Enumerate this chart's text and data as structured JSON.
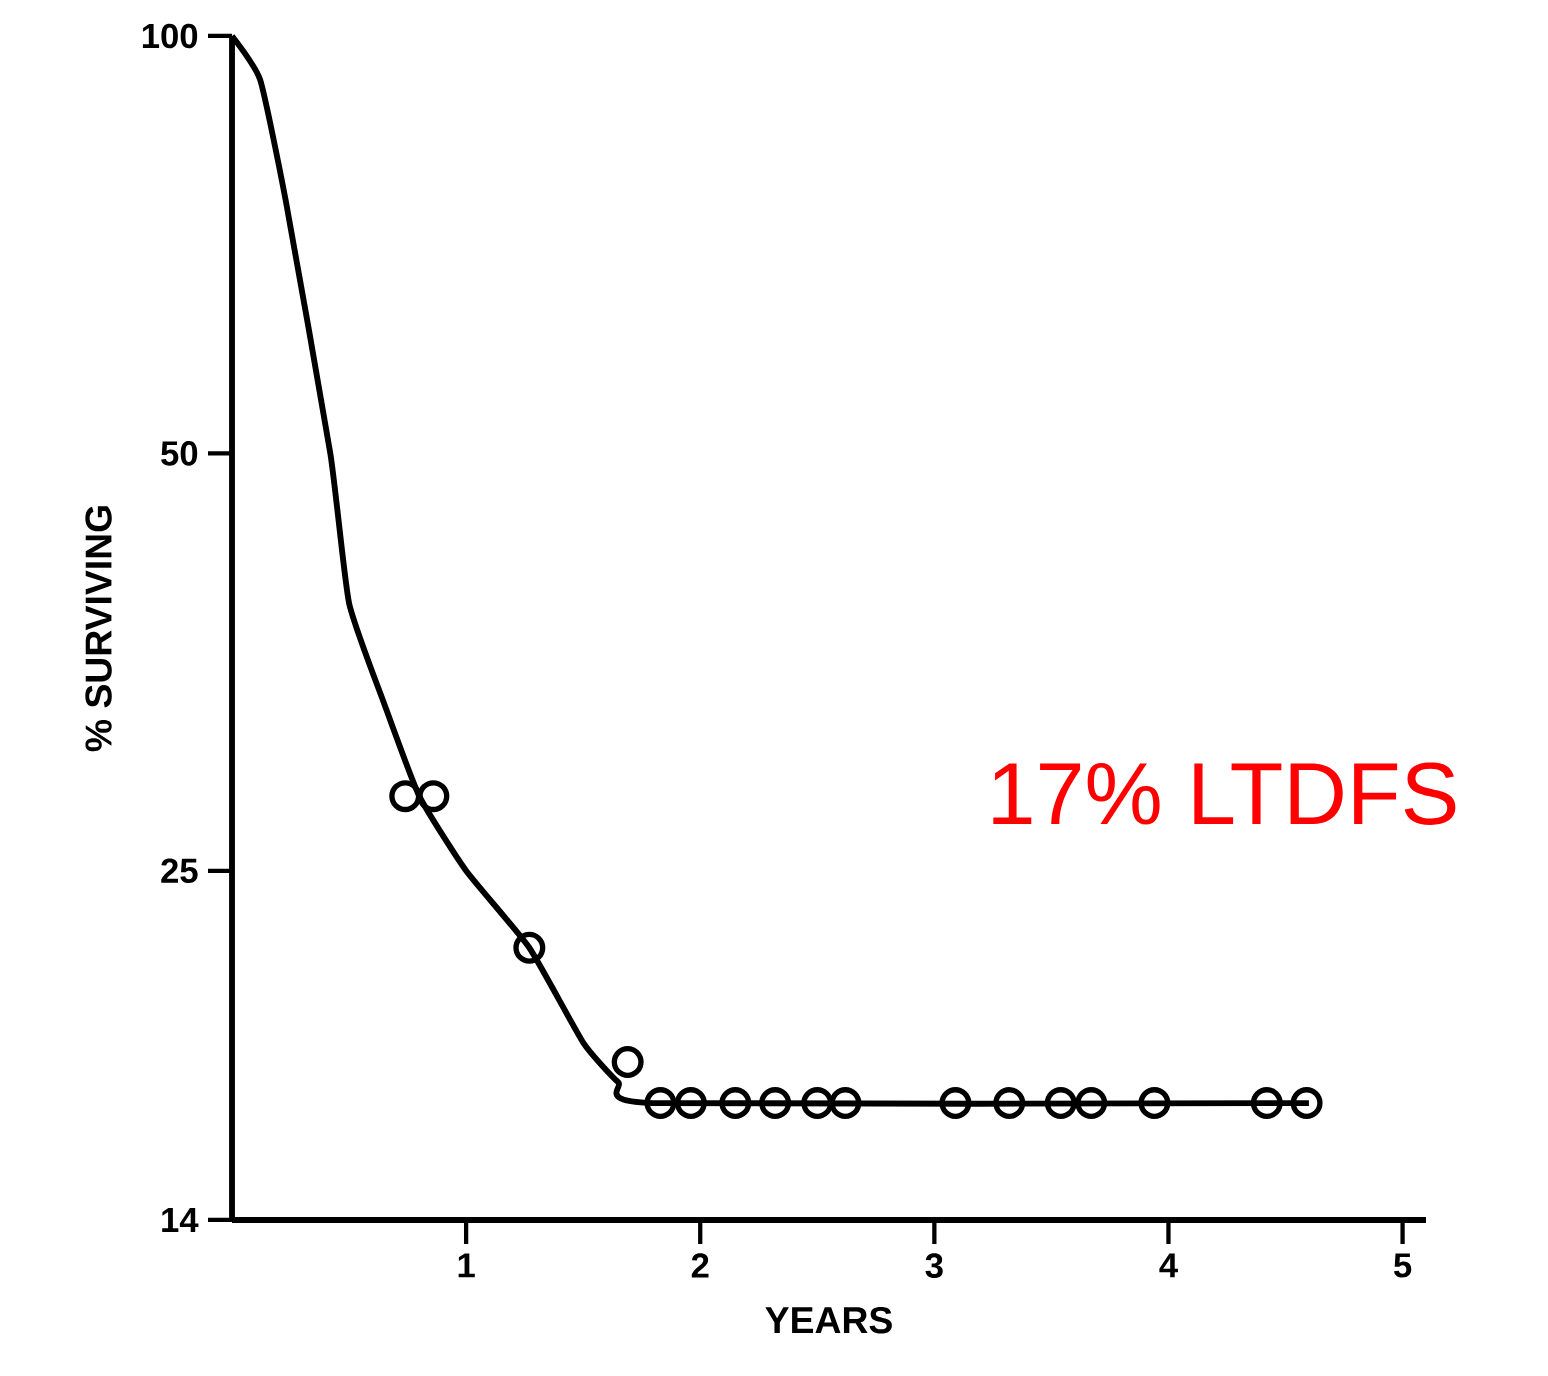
{
  "chart_data": {
    "type": "line",
    "xlabel": "YEARS",
    "ylabel": "% SURVIVING",
    "log": "y",
    "xlim": [
      0,
      5.1
    ],
    "ylim": [
      14,
      100
    ],
    "xticks": [
      1,
      2,
      3,
      4,
      5
    ],
    "yticks": [
      14,
      25,
      50,
      100
    ],
    "grid": false,
    "annotations": [
      "17% LTDFS"
    ],
    "series": [
      {
        "color": "#000000",
        "marker": "none",
        "x": [
          0,
          0.12,
          0.23,
          0.42,
          0.5,
          0.65,
          0.8,
          1.0,
          1.27,
          1.5,
          1.65,
          1.8,
          4.6
        ],
        "values": [
          100,
          93,
          76,
          50,
          39,
          33,
          28.3,
          25,
          22,
          18.8,
          17.6,
          17,
          17
        ]
      },
      {
        "type": "scatter",
        "color": "#000000",
        "marker": "circle",
        "x": [
          0.74,
          0.86,
          1.27,
          1.69,
          1.83,
          1.96,
          2.15,
          2.32,
          2.5,
          2.62,
          3.09,
          3.32,
          3.54,
          3.67,
          3.94,
          4.42,
          4.59
        ],
        "values": [
          28.3,
          28.3,
          22,
          18.2,
          17,
          17,
          17,
          17,
          17,
          17,
          17,
          17,
          17,
          17,
          17,
          17,
          17
        ]
      }
    ]
  }
}
